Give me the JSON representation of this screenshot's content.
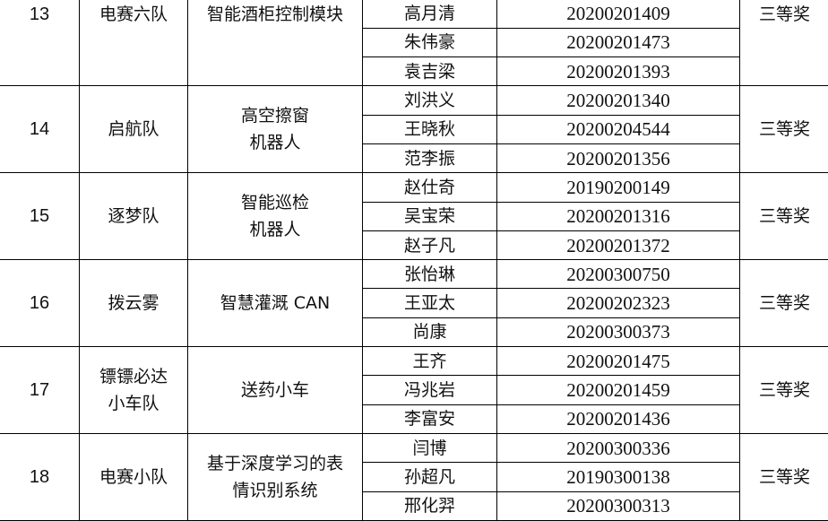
{
  "groups": [
    {
      "no": "13",
      "team": [
        "电赛六队"
      ],
      "project": [
        "智能酒柜控制模块"
      ],
      "award": "三等奖",
      "members": [
        {
          "name": "高月清",
          "id": "20200201409"
        },
        {
          "name": "朱伟豪",
          "id": "20200201473"
        },
        {
          "name": "袁吉梁",
          "id": "20200201393"
        }
      ]
    },
    {
      "no": "14",
      "team": [
        "启航队"
      ],
      "project": [
        "高空擦窗",
        "机器人"
      ],
      "award": "三等奖",
      "members": [
        {
          "name": "刘洪义",
          "id": "20200201340"
        },
        {
          "name": "王晓秋",
          "id": "20200204544"
        },
        {
          "name": "范李振",
          "id": "20200201356"
        }
      ]
    },
    {
      "no": "15",
      "team": [
        "逐梦队"
      ],
      "project": [
        "智能巡检",
        "机器人"
      ],
      "award": "三等奖",
      "members": [
        {
          "name": "赵仕奇",
          "id": "20190200149"
        },
        {
          "name": "吴宝荣",
          "id": "20200201316"
        },
        {
          "name": "赵子凡",
          "id": "20200201372"
        }
      ]
    },
    {
      "no": "16",
      "team": [
        "拨云雾"
      ],
      "project": [
        "智慧灌溉 CAN"
      ],
      "award": "三等奖",
      "members": [
        {
          "name": "张怡琳",
          "id": "20200300750"
        },
        {
          "name": "王亚太",
          "id": "20200202323"
        },
        {
          "name": "尚康",
          "id": "20200300373"
        }
      ]
    },
    {
      "no": "17",
      "team": [
        "镖镖必达",
        "小车队"
      ],
      "project": [
        "送药小车"
      ],
      "award": "三等奖",
      "members": [
        {
          "name": "王齐",
          "id": "20200201475"
        },
        {
          "name": "冯兆岩",
          "id": "20200201459"
        },
        {
          "name": "李富安",
          "id": "20200201436"
        }
      ]
    },
    {
      "no": "18",
      "team": [
        "电赛小队"
      ],
      "project": [
        "基于深度学习的表",
        "情识别系统"
      ],
      "award": "三等奖",
      "members": [
        {
          "name": "闫博",
          "id": "20200300336"
        },
        {
          "name": "孙超凡",
          "id": "20190300138"
        },
        {
          "name": "邢化羿",
          "id": "20200300313"
        }
      ]
    }
  ]
}
